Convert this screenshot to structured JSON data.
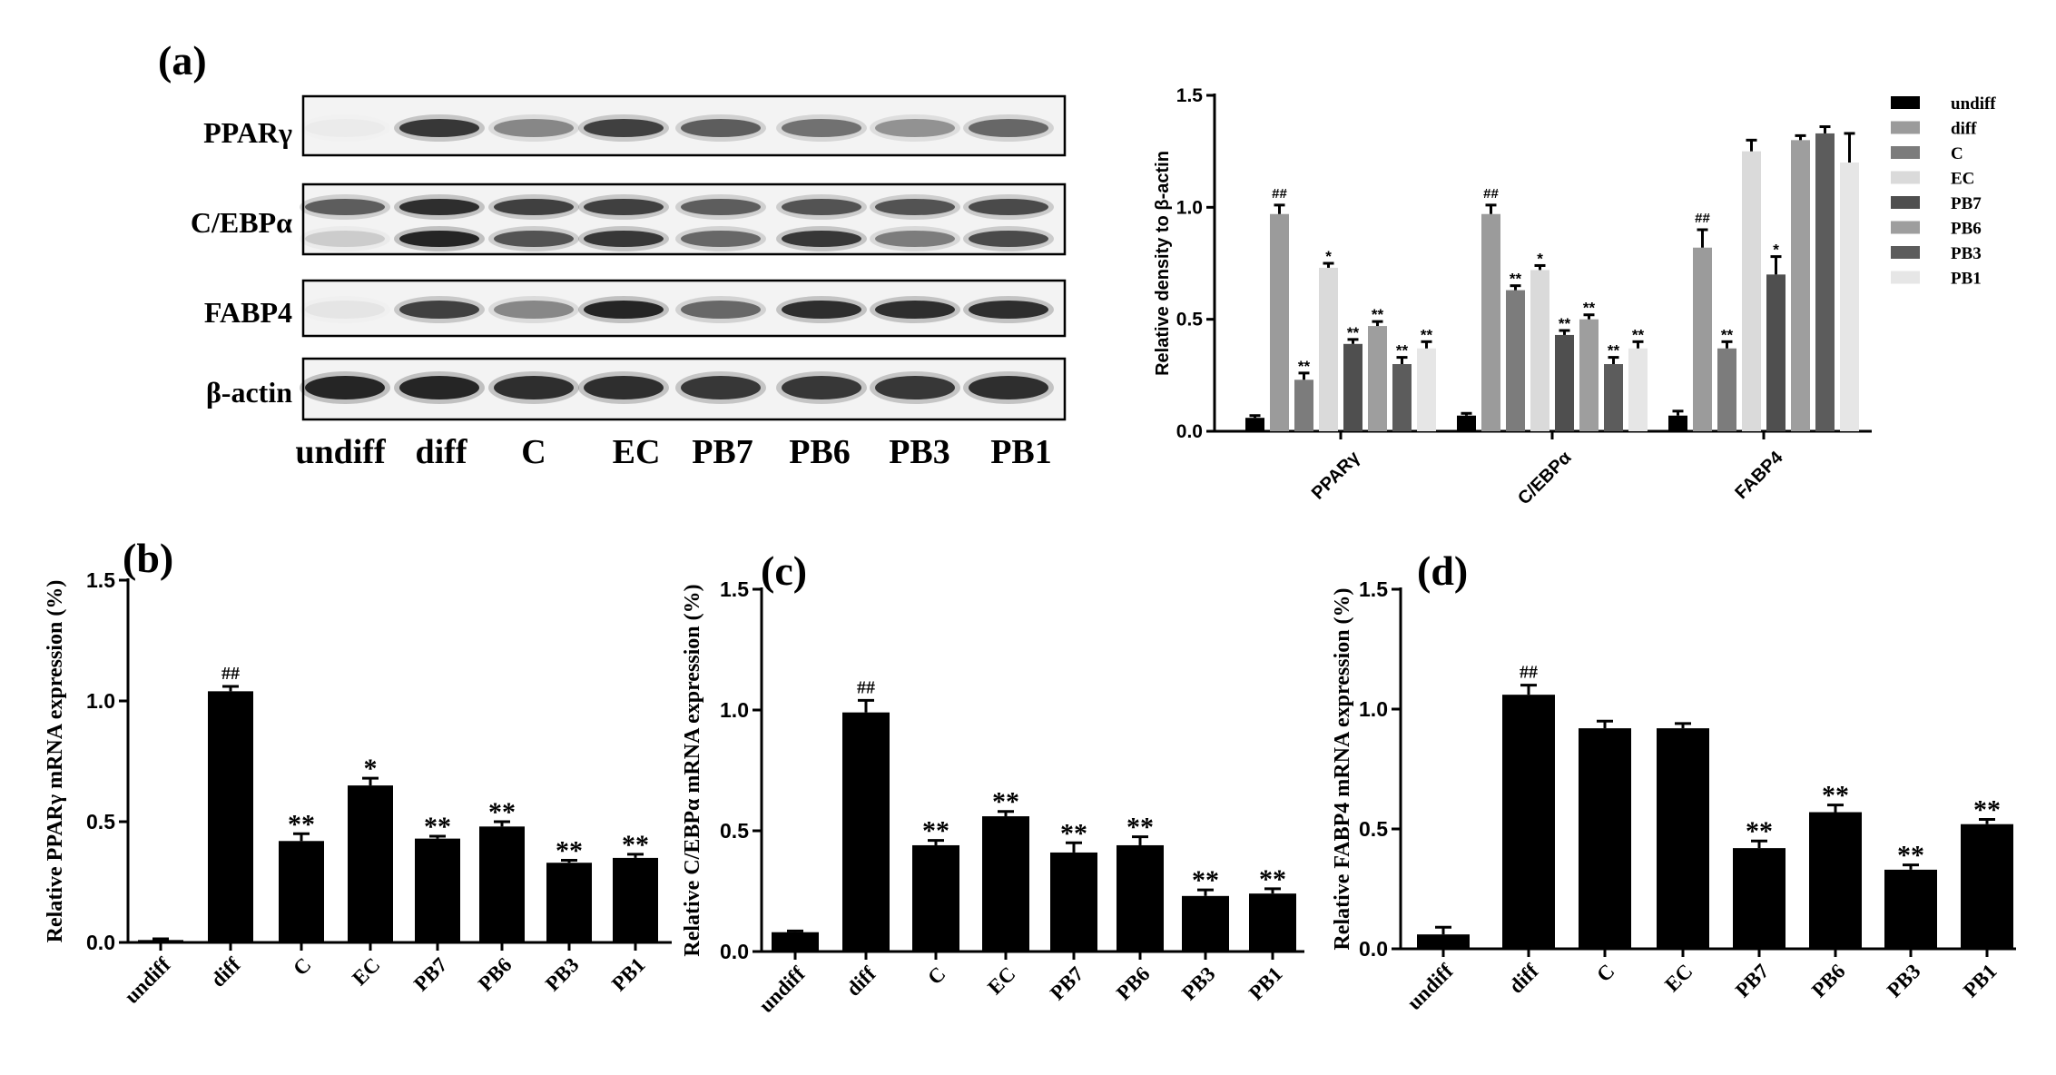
{
  "panel_labels": [
    "(a)",
    "(b)",
    "(c)",
    "(d)"
  ],
  "blot": {
    "lanes": [
      "undiff",
      "diff",
      "C",
      "EC",
      "PB7",
      "PB6",
      "PB3",
      "PB1"
    ],
    "rows": [
      {
        "label": "PPARγ",
        "band_intensity": [
          [
            0.03,
            0.85,
            0.45,
            0.8,
            0.65,
            0.55,
            0.4,
            0.6
          ]
        ]
      },
      {
        "label": "C/EBPα",
        "band_intensity": [
          [
            0.65,
            0.9,
            0.8,
            0.8,
            0.65,
            0.7,
            0.7,
            0.75
          ],
          [
            0.15,
            0.95,
            0.7,
            0.85,
            0.6,
            0.85,
            0.5,
            0.75
          ]
        ]
      },
      {
        "label": "FABP4",
        "band_intensity": [
          [
            0.05,
            0.8,
            0.45,
            0.95,
            0.6,
            0.9,
            0.9,
            0.9
          ]
        ]
      },
      {
        "label": "β-actin",
        "band_intensity": [
          [
            0.95,
            0.95,
            0.9,
            0.9,
            0.85,
            0.85,
            0.85,
            0.9
          ]
        ]
      }
    ]
  },
  "chart_data": [
    {
      "type": "bar",
      "categories": [
        "PPARγ",
        "C/EBPα",
        "FABP4"
      ],
      "series": [
        {
          "name": "undiff",
          "color": "#000000",
          "values": [
            0.06,
            0.07,
            0.07
          ],
          "errors": [
            0.01,
            0.01,
            0.02
          ],
          "marks": [
            "",
            "",
            ""
          ]
        },
        {
          "name": "diff",
          "color": "#9b9b9b",
          "values": [
            0.97,
            0.97,
            0.82
          ],
          "errors": [
            0.04,
            0.04,
            0.08
          ],
          "marks": [
            "##",
            "##",
            "##"
          ]
        },
        {
          "name": "C",
          "color": "#7c7c7c",
          "values": [
            0.23,
            0.63,
            0.37
          ],
          "errors": [
            0.03,
            0.02,
            0.03
          ],
          "marks": [
            "**",
            "**",
            "**"
          ]
        },
        {
          "name": "EC",
          "color": "#dadada",
          "values": [
            0.73,
            0.72,
            1.25
          ],
          "errors": [
            0.02,
            0.02,
            0.05
          ],
          "marks": [
            "*",
            "*",
            ""
          ]
        },
        {
          "name": "PB7",
          "color": "#4f4f4f",
          "values": [
            0.39,
            0.43,
            0.7
          ],
          "errors": [
            0.02,
            0.02,
            0.08
          ],
          "marks": [
            "**",
            "**",
            "*"
          ]
        },
        {
          "name": "PB6",
          "color": "#9e9e9e",
          "values": [
            0.47,
            0.5,
            1.3
          ],
          "errors": [
            0.02,
            0.02,
            0.02
          ],
          "marks": [
            "**",
            "**",
            ""
          ]
        },
        {
          "name": "PB3",
          "color": "#5c5c5c",
          "values": [
            0.3,
            0.3,
            1.33
          ],
          "errors": [
            0.03,
            0.03,
            0.03
          ],
          "marks": [
            "**",
            "**",
            ""
          ]
        },
        {
          "name": "PB1",
          "color": "#e6e6e6",
          "values": [
            0.37,
            0.37,
            1.2
          ],
          "errors": [
            0.03,
            0.03,
            0.13
          ],
          "marks": [
            "**",
            "**",
            ""
          ]
        }
      ],
      "ylabel": "Relative density to β-actin",
      "ylim": [
        0,
        1.5
      ],
      "yticks": [
        0,
        0.5,
        1,
        1.5
      ],
      "ytick_labels": [
        "0.0",
        "0.5",
        "1.0",
        "1.5"
      ],
      "legend": "right"
    },
    {
      "type": "bar",
      "categories": [
        "undiff",
        "diff",
        "C",
        "EC",
        "PB7",
        "PB6",
        "PB3",
        "PB1"
      ],
      "values": [
        0.01,
        1.04,
        0.42,
        0.65,
        0.43,
        0.48,
        0.33,
        0.35
      ],
      "errors": [
        0.005,
        0.02,
        0.03,
        0.03,
        0.01,
        0.02,
        0.01,
        0.015
      ],
      "marks": [
        "",
        "##",
        "**",
        "*",
        "**",
        "**",
        "**",
        "**"
      ],
      "color": "#000000",
      "ylabel": "Relative PPARγ mRNA expression (%)",
      "ylim": [
        0,
        1.5
      ],
      "yticks": [
        0,
        0.5,
        1,
        1.5
      ],
      "ytick_labels": [
        "0.0",
        "0.5",
        "1.0",
        "1.5"
      ]
    },
    {
      "type": "bar",
      "categories": [
        "undiff",
        "diff",
        "C",
        "EC",
        "PB7",
        "PB6",
        "PB3",
        "PB1"
      ],
      "values": [
        0.08,
        0.99,
        0.44,
        0.56,
        0.41,
        0.44,
        0.23,
        0.24
      ],
      "errors": [
        0.005,
        0.05,
        0.02,
        0.02,
        0.04,
        0.035,
        0.025,
        0.02
      ],
      "marks": [
        "",
        "##",
        "**",
        "**",
        "**",
        "**",
        "**",
        "**"
      ],
      "color": "#000000",
      "ylabel": "Relative C/EBPα mRNA expression (%)",
      "ylim": [
        0,
        1.5
      ],
      "yticks": [
        0,
        0.5,
        1,
        1.5
      ],
      "ytick_labels": [
        "0.0",
        "0.5",
        "1.0",
        "1.5"
      ]
    },
    {
      "type": "bar",
      "categories": [
        "undiff",
        "diff",
        "C",
        "EC",
        "PB7",
        "PB6",
        "PB3",
        "PB1"
      ],
      "values": [
        0.06,
        1.06,
        0.92,
        0.92,
        0.42,
        0.57,
        0.33,
        0.52
      ],
      "errors": [
        0.03,
        0.04,
        0.03,
        0.02,
        0.03,
        0.03,
        0.02,
        0.02
      ],
      "marks": [
        "",
        "##",
        "",
        "",
        "**",
        "**",
        "**",
        "**"
      ],
      "color": "#000000",
      "ylabel": "Relative FABP4 mRNA expression (%)",
      "ylim": [
        0,
        1.5
      ],
      "yticks": [
        0,
        0.5,
        1,
        1.5
      ],
      "ytick_labels": [
        "0.0",
        "0.5",
        "1.0",
        "1.5"
      ]
    }
  ]
}
